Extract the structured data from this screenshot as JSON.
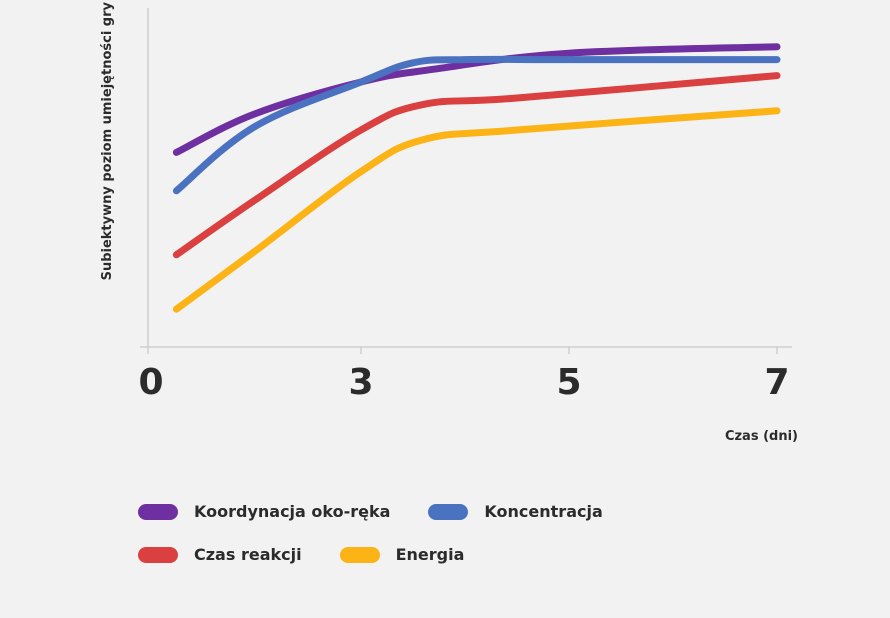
{
  "chart_data": {
    "type": "line",
    "title": "",
    "xlabel": "Czas (dni)",
    "ylabel": "Subiektywny poziom umiejętności gry",
    "x_ticks": [
      0,
      3,
      5,
      7
    ],
    "x_tick_labels": [
      "0",
      "3",
      "5",
      "7"
    ],
    "xlim": [
      0,
      7
    ],
    "ylim": [
      0,
      100
    ],
    "grid": false,
    "legend_position": "bottom",
    "series": [
      {
        "name": "Koordynacja oko-ręka",
        "color": "#6e2fa0",
        "points": [
          [
            0.4,
            58
          ],
          [
            1.5,
            70
          ],
          [
            3.0,
            80
          ],
          [
            3.7,
            84
          ],
          [
            5.0,
            89
          ],
          [
            7.0,
            91
          ]
        ]
      },
      {
        "name": "Koncentracja",
        "color": "#4a72c0",
        "points": [
          [
            0.4,
            46
          ],
          [
            1.5,
            66
          ],
          [
            3.0,
            80
          ],
          [
            3.5,
            86
          ],
          [
            4.0,
            87
          ],
          [
            5.0,
            87
          ],
          [
            7.0,
            87
          ]
        ]
      },
      {
        "name": "Czas reakcji",
        "color": "#d9403f",
        "points": [
          [
            0.4,
            26
          ],
          [
            1.5,
            43
          ],
          [
            3.0,
            65
          ],
          [
            3.6,
            73
          ],
          [
            4.5,
            75
          ],
          [
            7.0,
            82
          ]
        ]
      },
      {
        "name": "Energia",
        "color": "#fbb315",
        "points": [
          [
            0.4,
            9
          ],
          [
            1.5,
            27
          ],
          [
            3.0,
            52
          ],
          [
            3.6,
            62
          ],
          [
            4.5,
            65
          ],
          [
            7.0,
            71
          ]
        ]
      }
    ]
  }
}
